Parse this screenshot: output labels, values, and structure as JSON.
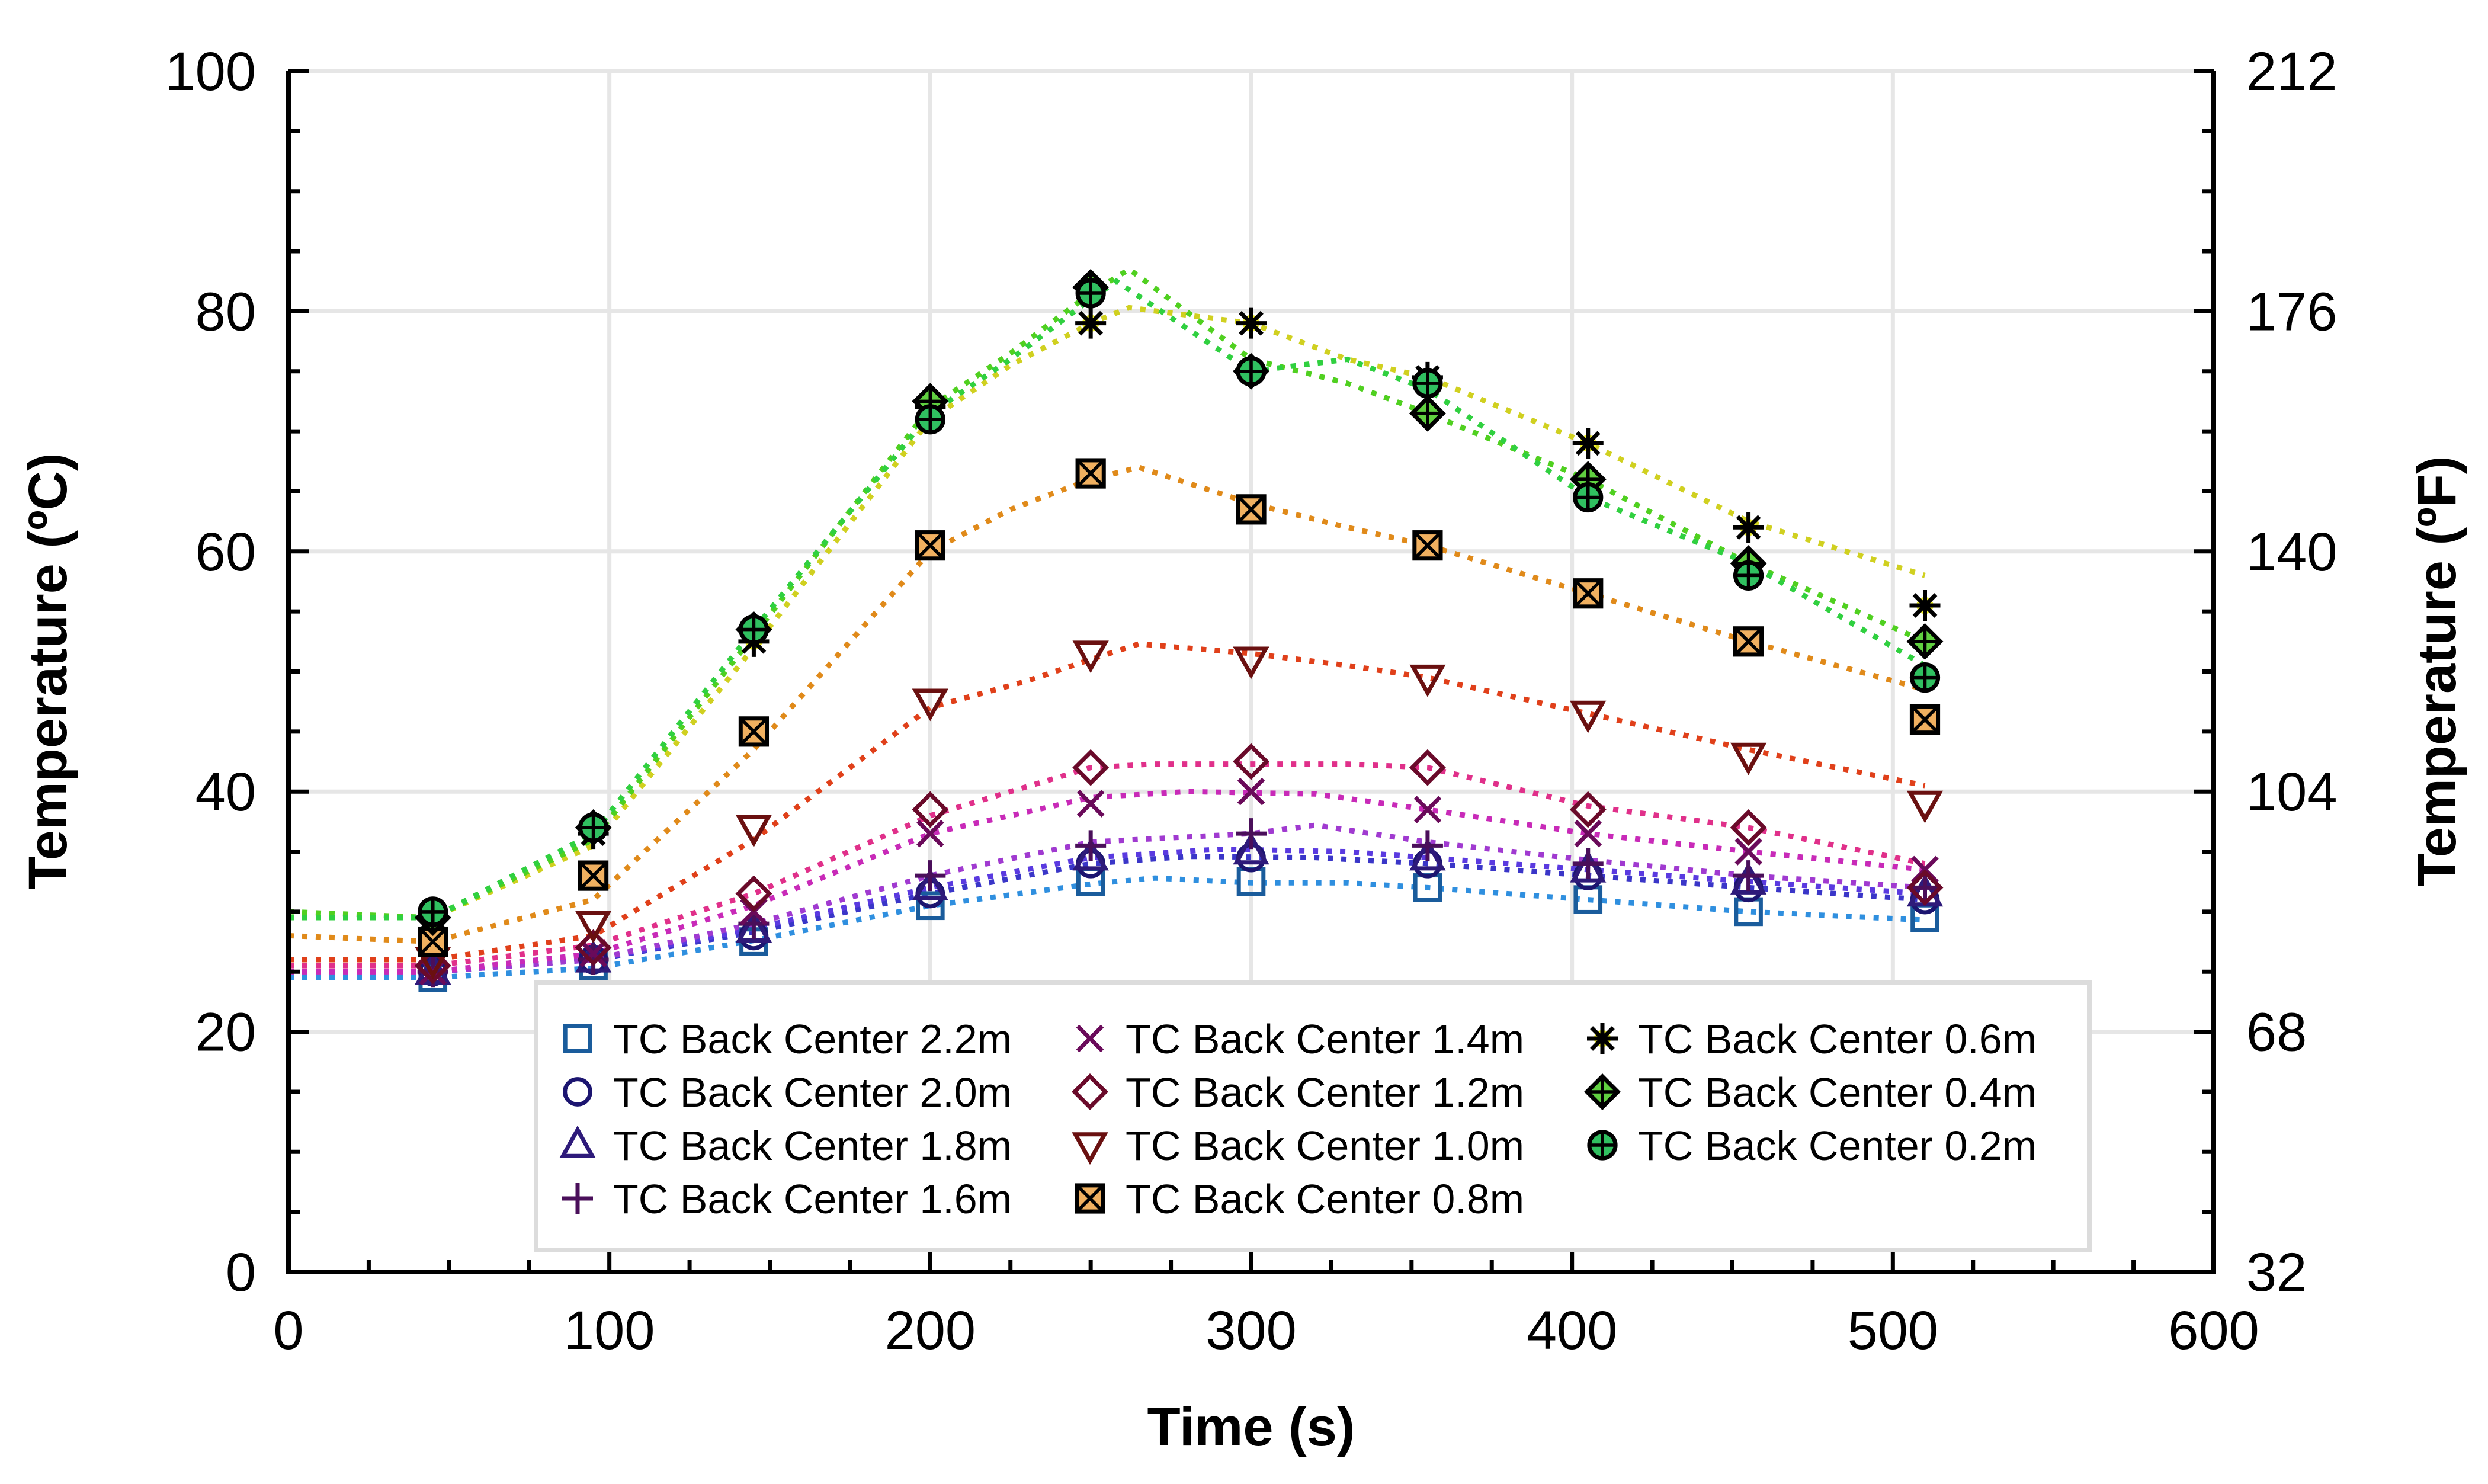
{
  "chart_data": {
    "type": "line",
    "title": "",
    "xlabel": "Time (s)",
    "ylabel": "Temperature (ºC)",
    "ylabel_right": "Temperature (ºF)",
    "xlim": [
      0,
      600
    ],
    "ylim": [
      0,
      100
    ],
    "ylim_right": [
      32,
      212
    ],
    "x_ticks": [
      "0",
      "100",
      "200",
      "300",
      "400",
      "500",
      "600"
    ],
    "y_ticks": [
      "0",
      "20",
      "40",
      "60",
      "80",
      "100"
    ],
    "y_ticks_right": [
      "32",
      "68",
      "104",
      "140",
      "176",
      "212"
    ],
    "grid": true,
    "legend_position": "bottom-right",
    "series": [
      {
        "name": "TC Back Center 2.2m",
        "marker": "square",
        "color": "#1a5c9c",
        "line_color": "#2f8fdf",
        "x": [
          45,
          95,
          145,
          200,
          250,
          300,
          355,
          405,
          455,
          510
        ],
        "y": [
          24.5,
          25.5,
          27.5,
          30.5,
          32.5,
          32.5,
          32.0,
          31.0,
          30.0,
          29.5
        ],
        "line": [
          [
            0,
            24.5
          ],
          [
            45,
            24.5
          ],
          [
            95,
            25.3
          ],
          [
            145,
            27.6
          ],
          [
            200,
            30.5
          ],
          [
            250,
            32.3
          ],
          [
            270,
            32.8
          ],
          [
            300,
            32.4
          ],
          [
            330,
            32.4
          ],
          [
            355,
            32.0
          ],
          [
            405,
            31.0
          ],
          [
            455,
            30.0
          ],
          [
            510,
            29.3
          ]
        ]
      },
      {
        "name": "TC Back Center 2.0m",
        "marker": "circle",
        "color": "#1c1570",
        "line_color": "#3a36c8",
        "x": [
          45,
          95,
          145,
          200,
          250,
          300,
          355,
          405,
          455,
          510
        ],
        "y": [
          25.0,
          26.0,
          28.0,
          31.5,
          34.0,
          34.5,
          34.0,
          33.0,
          32.0,
          31.0
        ],
        "line": [
          [
            0,
            25.0
          ],
          [
            45,
            25.0
          ],
          [
            95,
            26.0
          ],
          [
            145,
            28.3
          ],
          [
            200,
            31.5
          ],
          [
            250,
            34.0
          ],
          [
            280,
            34.6
          ],
          [
            320,
            34.5
          ],
          [
            355,
            34.0
          ],
          [
            405,
            33.0
          ],
          [
            455,
            32.0
          ],
          [
            510,
            31.0
          ]
        ]
      },
      {
        "name": "TC Back Center 1.8m",
        "marker": "triangle",
        "color": "#2e1a7a",
        "line_color": "#5a3ae0",
        "x": [
          45,
          95,
          145,
          200,
          250,
          300,
          355,
          405,
          455,
          510
        ],
        "y": [
          25.0,
          26.0,
          28.5,
          32.0,
          34.5,
          35.0,
          34.5,
          33.5,
          32.5,
          31.5
        ],
        "line": [
          [
            0,
            25.0
          ],
          [
            45,
            25.0
          ],
          [
            95,
            26.0
          ],
          [
            145,
            28.6
          ],
          [
            200,
            32.0
          ],
          [
            250,
            34.5
          ],
          [
            290,
            35.2
          ],
          [
            330,
            35.0
          ],
          [
            355,
            34.5
          ],
          [
            405,
            33.5
          ],
          [
            455,
            32.5
          ],
          [
            510,
            31.5
          ]
        ]
      },
      {
        "name": "TC Back Center 1.6m",
        "marker": "plus",
        "color": "#4a0f5a",
        "line_color": "#a03ad0",
        "x": [
          45,
          95,
          145,
          200,
          250,
          300,
          355,
          405,
          455,
          510
        ],
        "y": [
          25.0,
          26.0,
          29.0,
          33.0,
          35.5,
          36.5,
          35.5,
          34.0,
          33.0,
          32.0
        ],
        "line": [
          [
            0,
            25.0
          ],
          [
            45,
            25.0
          ],
          [
            95,
            26.0
          ],
          [
            145,
            29.0
          ],
          [
            200,
            33.0
          ],
          [
            250,
            35.8
          ],
          [
            300,
            36.5
          ],
          [
            320,
            37.2
          ],
          [
            355,
            35.8
          ],
          [
            405,
            34.3
          ],
          [
            455,
            33.0
          ],
          [
            510,
            32.0
          ]
        ]
      },
      {
        "name": "TC Back Center 1.4m",
        "marker": "x",
        "color": "#6a0a5a",
        "line_color": "#c82ab8",
        "x": [
          45,
          95,
          145,
          200,
          250,
          300,
          355,
          405,
          455,
          510
        ],
        "y": [
          25.0,
          26.5,
          30.0,
          36.5,
          39.0,
          40.0,
          38.5,
          36.5,
          35.0,
          33.5
        ],
        "line": [
          [
            0,
            25.0
          ],
          [
            45,
            25.0
          ],
          [
            95,
            26.5
          ],
          [
            145,
            30.5
          ],
          [
            200,
            36.5
          ],
          [
            250,
            39.5
          ],
          [
            280,
            40.0
          ],
          [
            320,
            39.8
          ],
          [
            355,
            38.5
          ],
          [
            405,
            36.5
          ],
          [
            455,
            35.0
          ],
          [
            510,
            33.5
          ]
        ]
      },
      {
        "name": "TC Back Center 1.2m",
        "marker": "diamond",
        "color": "#6a0a2a",
        "line_color": "#e0308a",
        "x": [
          45,
          95,
          145,
          200,
          250,
          300,
          355,
          405,
          455,
          510
        ],
        "y": [
          25.5,
          27.0,
          31.5,
          38.5,
          42.0,
          42.5,
          42.0,
          38.5,
          37.0,
          32.0
        ],
        "line": [
          [
            0,
            25.5
          ],
          [
            45,
            25.5
          ],
          [
            95,
            27.2
          ],
          [
            145,
            31.5
          ],
          [
            200,
            38.0
          ],
          [
            250,
            42.0
          ],
          [
            270,
            42.3
          ],
          [
            300,
            42.3
          ],
          [
            330,
            42.3
          ],
          [
            355,
            42.0
          ],
          [
            405,
            38.8
          ],
          [
            455,
            37.0
          ],
          [
            510,
            34.0
          ]
        ]
      },
      {
        "name": "TC Back Center 1.0m",
        "marker": "triangle-down",
        "color": "#6a1010",
        "line_color": "#e0401a",
        "x": [
          45,
          95,
          145,
          200,
          250,
          300,
          355,
          405,
          455,
          510
        ],
        "y": [
          26.0,
          29.0,
          37.0,
          47.5,
          51.5,
          51.0,
          49.5,
          46.5,
          43.0,
          39.0
        ],
        "line": [
          [
            0,
            26.0
          ],
          [
            45,
            26.0
          ],
          [
            95,
            28.0
          ],
          [
            145,
            36.0
          ],
          [
            200,
            47.0
          ],
          [
            230,
            49.2
          ],
          [
            250,
            51.0
          ],
          [
            265,
            52.3
          ],
          [
            300,
            51.5
          ],
          [
            330,
            50.5
          ],
          [
            355,
            49.5
          ],
          [
            405,
            46.5
          ],
          [
            455,
            43.5
          ],
          [
            510,
            40.5
          ]
        ]
      },
      {
        "name": "TC Back Center 0.8m",
        "marker": "square-x",
        "color": "#000000",
        "fill": "#f0b060",
        "line_color": "#e08a1a",
        "x": [
          45,
          95,
          145,
          200,
          250,
          300,
          355,
          405,
          455,
          510
        ],
        "y": [
          27.5,
          33.0,
          45.0,
          60.5,
          66.5,
          63.5,
          60.5,
          56.5,
          52.5,
          46.0
        ],
        "line": [
          [
            0,
            28.0
          ],
          [
            45,
            27.5
          ],
          [
            95,
            31.0
          ],
          [
            145,
            43.5
          ],
          [
            200,
            60.0
          ],
          [
            225,
            63.5
          ],
          [
            250,
            66.0
          ],
          [
            265,
            67.0
          ],
          [
            300,
            64.0
          ],
          [
            330,
            62.0
          ],
          [
            355,
            60.5
          ],
          [
            405,
            56.5
          ],
          [
            455,
            52.5
          ],
          [
            510,
            48.5
          ]
        ]
      },
      {
        "name": "TC Back Center 0.6m",
        "marker": "asterisk",
        "color": "#000000",
        "fill": "#f0f030",
        "line_color": "#d0d020",
        "x": [
          45,
          95,
          145,
          200,
          250,
          300,
          355,
          405,
          455,
          510
        ],
        "y": [
          29.5,
          36.5,
          52.5,
          72.0,
          79.0,
          79.0,
          74.5,
          69.0,
          62.0,
          55.5
        ],
        "line": [
          [
            0,
            29.5
          ],
          [
            45,
            29.5
          ],
          [
            95,
            35.5
          ],
          [
            145,
            52.0
          ],
          [
            200,
            71.0
          ],
          [
            225,
            75.5
          ],
          [
            250,
            79.0
          ],
          [
            262,
            80.3
          ],
          [
            300,
            79.0
          ],
          [
            330,
            76.0
          ],
          [
            355,
            74.5
          ],
          [
            405,
            69.0
          ],
          [
            455,
            62.5
          ],
          [
            510,
            58.0
          ]
        ]
      },
      {
        "name": "TC Back Center 0.4m",
        "marker": "diamond-plus",
        "color": "#000000",
        "fill": "#60d040",
        "line_color": "#50d020",
        "x": [
          45,
          95,
          145,
          200,
          250,
          300,
          355,
          405,
          455,
          510
        ],
        "y": [
          29.5,
          37.0,
          53.5,
          72.5,
          82.0,
          75.0,
          71.5,
          66.0,
          59.0,
          52.5
        ],
        "line": [
          [
            0,
            30.0
          ],
          [
            45,
            29.5
          ],
          [
            95,
            36.0
          ],
          [
            145,
            53.0
          ],
          [
            200,
            72.0
          ],
          [
            225,
            76.5
          ],
          [
            250,
            81.5
          ],
          [
            262,
            83.5
          ],
          [
            300,
            76.0
          ],
          [
            330,
            74.0
          ],
          [
            355,
            71.5
          ],
          [
            405,
            66.0
          ],
          [
            455,
            59.0
          ],
          [
            510,
            52.5
          ]
        ]
      },
      {
        "name": "TC Back Center 0.2m",
        "marker": "circle-plus",
        "color": "#000000",
        "fill": "#30c060",
        "line_color": "#30d040",
        "x": [
          45,
          95,
          145,
          200,
          250,
          300,
          355,
          405,
          455,
          510
        ],
        "y": [
          30.0,
          37.0,
          53.5,
          71.0,
          81.5,
          75.0,
          74.0,
          64.5,
          58.0,
          49.5
        ],
        "line": [
          [
            0,
            29.5
          ],
          [
            45,
            29.5
          ],
          [
            95,
            36.5
          ],
          [
            145,
            53.5
          ],
          [
            200,
            71.5
          ],
          [
            225,
            76.0
          ],
          [
            250,
            81.0
          ],
          [
            258,
            82.5
          ],
          [
            300,
            75.0
          ],
          [
            330,
            76.0
          ],
          [
            355,
            73.5
          ],
          [
            405,
            64.5
          ],
          [
            455,
            59.0
          ],
          [
            510,
            50.5
          ]
        ]
      }
    ]
  }
}
